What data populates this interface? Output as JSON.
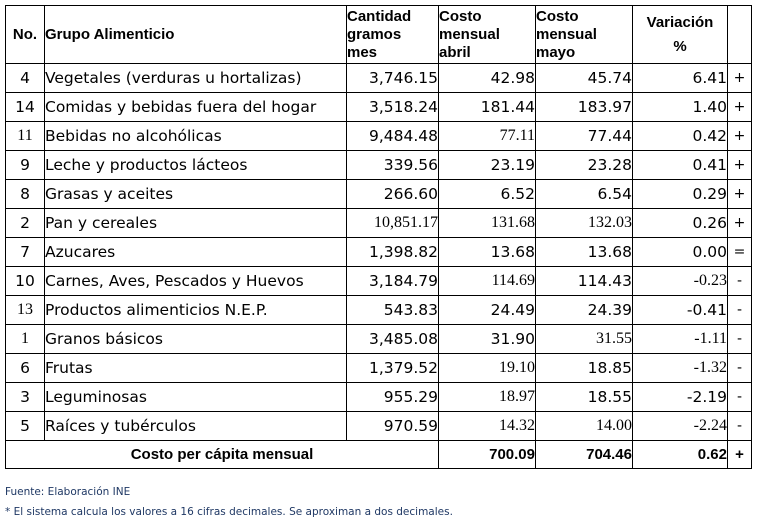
{
  "headers": {
    "no": "No.",
    "grupo": "Grupo Alimenticio",
    "cantidad": [
      "Cantidad",
      "gramos",
      "mes"
    ],
    "abril": [
      "Costo",
      "mensual",
      "abril"
    ],
    "mayo": [
      "Costo",
      "mensual",
      "mayo"
    ],
    "variacion": [
      "Variación",
      "%"
    ]
  },
  "rows": [
    {
      "no": "4",
      "grupo": "Vegetales (verduras u hortalizas)",
      "cantidad": "3,746.15",
      "abril": "42.98",
      "mayo": "45.74",
      "var": "6.41",
      "sign": "+"
    },
    {
      "no": "14",
      "grupo": "Comidas y bebidas fuera del hogar",
      "cantidad": "3,518.24",
      "abril": "181.44",
      "mayo": "183.97",
      "var": "1.40",
      "sign": "+"
    },
    {
      "no": "11",
      "grupo": "Bebidas no alcohólicas",
      "cantidad": "9,484.48",
      "abril": "77.11",
      "mayo": "77.44",
      "var": "0.42",
      "sign": "+"
    },
    {
      "no": "9",
      "grupo": "Leche y productos lácteos",
      "cantidad": "339.56",
      "abril": "23.19",
      "mayo": "23.28",
      "var": "0.41",
      "sign": "+"
    },
    {
      "no": "8",
      "grupo": "Grasas y aceites",
      "cantidad": "266.60",
      "abril": "6.52",
      "mayo": "6.54",
      "var": "0.29",
      "sign": "+"
    },
    {
      "no": "2",
      "grupo": "Pan y cereales",
      "cantidad": "10,851.17",
      "abril": "131.68",
      "mayo": "132.03",
      "var": "0.26",
      "sign": "+"
    },
    {
      "no": "7",
      "grupo": "Azucares",
      "cantidad": "1,398.82",
      "abril": "13.68",
      "mayo": "13.68",
      "var": "0.00",
      "sign": "="
    },
    {
      "no": "10",
      "grupo": "Carnes, Aves, Pescados y Huevos",
      "cantidad": "3,184.79",
      "abril": "114.69",
      "mayo": "114.43",
      "var": "-0.23",
      "sign": "-"
    },
    {
      "no": "13",
      "grupo": "Productos alimenticios N.E.P.",
      "cantidad": "543.83",
      "abril": "24.49",
      "mayo": "24.39",
      "var": "-0.41",
      "sign": "-"
    },
    {
      "no": "1",
      "grupo": "Granos básicos",
      "cantidad": "3,485.08",
      "abril": "31.90",
      "mayo": "31.55",
      "var": "-1.11",
      "sign": "-"
    },
    {
      "no": "6",
      "grupo": "Frutas",
      "cantidad": "1,379.52",
      "abril": "19.10",
      "mayo": "18.85",
      "var": "-1.32",
      "sign": "-"
    },
    {
      "no": "3",
      "grupo": "Leguminosas",
      "cantidad": "955.29",
      "abril": "18.97",
      "mayo": "18.55",
      "var": "-2.19",
      "sign": "-"
    },
    {
      "no": "5",
      "grupo": "Raíces y tubérculos",
      "cantidad": "970.59",
      "abril": "14.32",
      "mayo": "14.00",
      "var": "-2.24",
      "sign": "-"
    }
  ],
  "total": {
    "label": "Costo per cápita mensual",
    "abril": "700.09",
    "mayo": "704.46",
    "var": "0.62",
    "sign": "+"
  },
  "notes": {
    "fuente": "Fuente:  Elaboración INE",
    "sistema": "* El sistema calcula los valores a 16 cifras decimales. Se aproximan a dos decimales."
  }
}
